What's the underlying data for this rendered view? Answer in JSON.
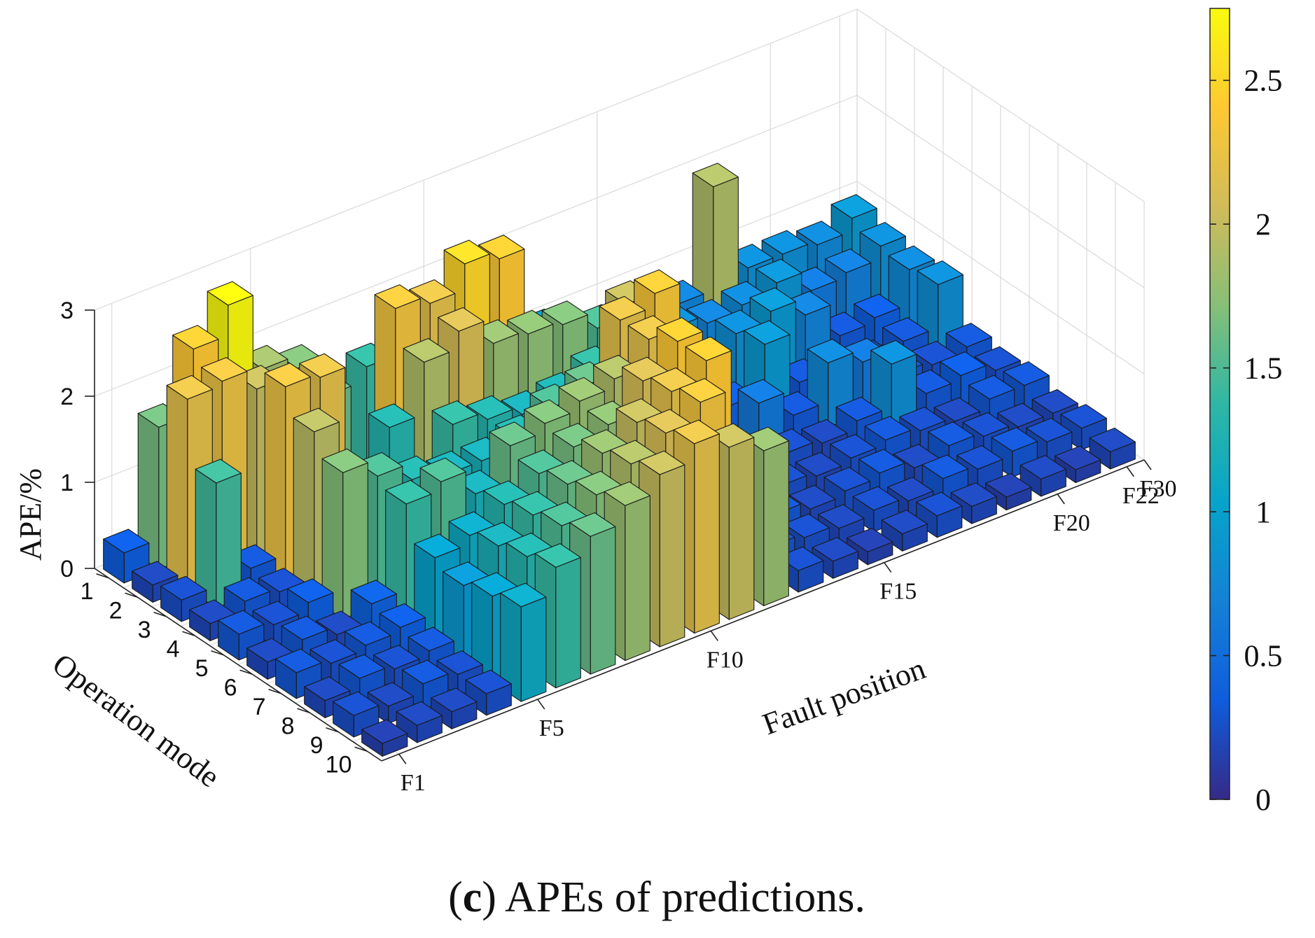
{
  "caption": {
    "open_paren": "(",
    "letter": "c",
    "rest": ") APEs of predictions."
  },
  "chart_data": {
    "type": "bar3d",
    "title": "",
    "xlabel": "Fault position",
    "ylabel": "Operation mode",
    "zlabel": "APE/%",
    "zlim": [
      0,
      3
    ],
    "z_ticks": [
      "0",
      "1",
      "2",
      "3"
    ],
    "x_tick_labels": [
      "F1",
      "F5",
      "F10",
      "F15",
      "F20",
      "F22",
      "F30"
    ],
    "x_tick_positions": [
      1,
      5,
      10,
      15,
      20,
      22,
      30
    ],
    "y_tick_labels": [
      "1",
      "2",
      "3",
      "4",
      "5",
      "6",
      "7",
      "8",
      "9",
      "10"
    ],
    "colorbar": {
      "colormap": "parula",
      "range": [
        0,
        2.75
      ],
      "tick_labels": [
        "0",
        "0.5",
        "1",
        "1.5",
        "2",
        "2.5"
      ],
      "tick_values": [
        0,
        0.5,
        1,
        1.5,
        2,
        2.5
      ],
      "colors": [
        "#352a87",
        "#0f5cdd",
        "#1481d6",
        "#06a4ca",
        "#2eb7a4",
        "#87bf77",
        "#d1bb59",
        "#fec832",
        "#f9fb0e"
      ]
    },
    "fault_positions": [
      1,
      2,
      3,
      4,
      5,
      6,
      7,
      8,
      9,
      10,
      11,
      12,
      13,
      14,
      15,
      16,
      17,
      18,
      19,
      20,
      21,
      22
    ],
    "operation_modes": [
      1,
      2,
      3,
      4,
      5,
      6,
      7,
      8,
      9,
      10
    ],
    "values": [
      [
        0.35,
        1.65,
        2.4,
        2.75,
        1.85,
        1.7,
        0.15,
        1.4,
        1.3,
        1.25,
        1.2,
        1.1,
        1.0,
        0.2,
        0.15,
        0.9,
        0.7,
        1.9,
        0.8,
        0.8,
        0.75,
        0.9
      ],
      [
        0.2,
        2.2,
        2.25,
        2.0,
        1.6,
        1.6,
        0.4,
        2.3,
        2.2,
        2.5,
        2.4,
        1.3,
        1.2,
        0.3,
        0.25,
        0.8,
        0.7,
        0.75,
        0.85,
        0.6,
        0.65,
        0.8
      ],
      [
        0.25,
        1.45,
        0.3,
        2.25,
        2.2,
        0.6,
        1.3,
        1.9,
        2.1,
        1.8,
        1.75,
        1.7,
        1.5,
        0.25,
        0.35,
        0.3,
        0.8,
        0.9,
        0.7,
        0.3,
        0.35,
        0.75
      ],
      [
        0.2,
        0.3,
        0.25,
        1.95,
        0.35,
        1.05,
        0.4,
        1.4,
        1.3,
        1.2,
        1.25,
        1.4,
        2.0,
        0.3,
        0.25,
        0.35,
        0.9,
        0.3,
        0.25,
        0.2,
        0.3,
        0.8
      ],
      [
        0.3,
        0.25,
        0.35,
        1.7,
        1.5,
        1.3,
        1.2,
        1.2,
        1.3,
        1.5,
        1.6,
        2.2,
        2.35,
        0.25,
        0.2,
        0.6,
        0.3,
        0.75,
        0.6,
        0.3,
        0.25,
        0.3
      ],
      [
        0.2,
        0.3,
        0.2,
        0.4,
        1.4,
        1.5,
        1.2,
        1.6,
        1.7,
        1.8,
        1.9,
        2.2,
        1.5,
        0.4,
        0.3,
        0.25,
        0.2,
        0.3,
        0.8,
        0.3,
        0.35,
        0.25
      ],
      [
        0.3,
        0.25,
        0.3,
        0.35,
        1.0,
        1.1,
        1.3,
        1.5,
        1.65,
        1.75,
        2.1,
        2.4,
        0.9,
        0.3,
        0.25,
        0.2,
        0.25,
        0.3,
        0.25,
        0.2,
        0.3,
        0.3
      ],
      [
        0.2,
        0.3,
        0.25,
        0.3,
        0.9,
        1.2,
        1.4,
        1.6,
        1.8,
        2.0,
        2.2,
        2.4,
        0.35,
        0.3,
        0.2,
        0.25,
        0.3,
        0.2,
        0.3,
        0.25,
        0.2,
        0.2
      ],
      [
        0.25,
        0.2,
        0.3,
        0.25,
        1.0,
        1.3,
        1.5,
        1.7,
        1.9,
        2.1,
        2.3,
        1.5,
        0.3,
        0.25,
        0.2,
        0.25,
        0.2,
        0.3,
        0.25,
        0.3,
        0.25,
        0.25
      ],
      [
        0.15,
        0.2,
        0.2,
        0.25,
        1.1,
        1.4,
        1.6,
        1.8,
        2.0,
        2.2,
        2.0,
        1.8,
        0.25,
        0.2,
        0.15,
        0.2,
        0.25,
        0.2,
        0.15,
        0.2,
        0.15,
        0.2
      ]
    ]
  }
}
